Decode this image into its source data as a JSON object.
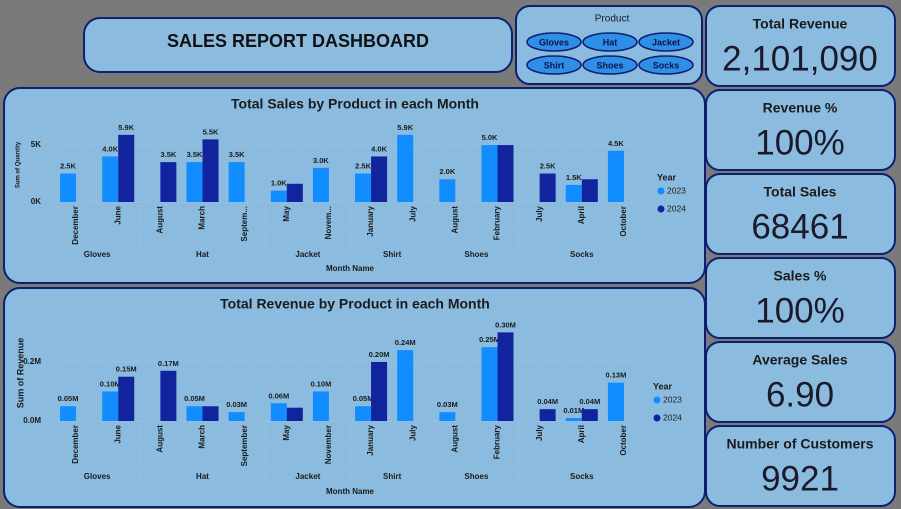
{
  "header": {
    "title": "SALES REPORT DASHBOARD"
  },
  "slicer": {
    "title": "Product",
    "options": [
      "Gloves",
      "Hat",
      "Jacket",
      "Shirt",
      "Shoes",
      "Socks"
    ]
  },
  "kpis": [
    {
      "title": "Total Revenue",
      "value": "2,101,090"
    },
    {
      "title": "Revenue %",
      "value": "100%"
    },
    {
      "title": "Total Sales",
      "value": "68461"
    },
    {
      "title": "Sales %",
      "value": "100%"
    },
    {
      "title": "Average Sales",
      "value": "6.90"
    },
    {
      "title": "Number of Customers",
      "value": "9921"
    }
  ],
  "chart_data": [
    {
      "type": "bar",
      "title": "Total Sales by Product in each Month",
      "x_label": "Month Name",
      "y_label": "Sum of Quantity",
      "legend_title": "Year",
      "categories": [
        "December",
        "June",
        "August",
        "March",
        "Septem...",
        "May",
        "Novem...",
        "January",
        "July",
        "August",
        "February",
        "July",
        "April",
        "October"
      ],
      "category_groups": [
        "Gloves",
        "Gloves",
        "Hat",
        "Hat",
        "Hat",
        "Jacket",
        "Jacket",
        "Shirt",
        "Shirt",
        "Shoes",
        "Shoes",
        "Socks",
        "Socks",
        "Socks"
      ],
      "series": [
        {
          "name": "2023",
          "color": "#118dff",
          "values": [
            2500,
            4000,
            null,
            3500,
            3500,
            1000,
            3000,
            2500,
            5900,
            2000,
            5000,
            null,
            1500,
            4500
          ],
          "value_labels": [
            "2.5K",
            "4.0K",
            null,
            "3.5K",
            "3.5K",
            "1.0K",
            "3.0K",
            "2.5K",
            "5.9K",
            "2.0K",
            "5.0K",
            null,
            "1.5K",
            "4.5K"
          ]
        },
        {
          "name": "2024",
          "color": "#12239e",
          "values": [
            null,
            5900,
            3500,
            5500,
            null,
            1600,
            null,
            4000,
            null,
            null,
            5000,
            2500,
            2000,
            null
          ],
          "value_labels": [
            null,
            "5.9K",
            "3.5K",
            "5.5K",
            null,
            null,
            null,
            "4.0K",
            null,
            null,
            null,
            "2.5K",
            null,
            null
          ]
        }
      ],
      "ylim": [
        0,
        6500
      ],
      "yticks": [
        {
          "value": 0,
          "label": "0K"
        },
        {
          "value": 5000,
          "label": "5K"
        }
      ],
      "grid": true
    },
    {
      "type": "bar",
      "title": "Total Revenue by Product in each Month",
      "x_label": "Month Name",
      "y_label": "Sum of Revenue",
      "legend_title": "Year",
      "categories": [
        "December",
        "June",
        "August",
        "March",
        "September",
        "May",
        "November",
        "January",
        "July",
        "August",
        "February",
        "July",
        "April",
        "October"
      ],
      "category_groups": [
        "Gloves",
        "Gloves",
        "Hat",
        "Hat",
        "Hat",
        "Jacket",
        "Jacket",
        "Shirt",
        "Shirt",
        "Shoes",
        "Shoes",
        "Socks",
        "Socks",
        "Socks"
      ],
      "series": [
        {
          "name": "2023",
          "color": "#118dff",
          "values": [
            50000,
            100000,
            null,
            50000,
            30000,
            60000,
            100000,
            50000,
            240000,
            30000,
            250000,
            null,
            10000,
            130000
          ],
          "value_labels": [
            "0.05M",
            "0.10M",
            null,
            "0.05M",
            "0.03M",
            "0.06M",
            "0.10M",
            "0.05M",
            "0.24M",
            "0.03M",
            "0.25M",
            null,
            "0.01M",
            "0.13M"
          ]
        },
        {
          "name": "2024",
          "color": "#12239e",
          "values": [
            null,
            150000,
            170000,
            50000,
            null,
            45000,
            null,
            200000,
            null,
            null,
            300000,
            40000,
            40000,
            null
          ],
          "value_labels": [
            null,
            "0.15M",
            "0.17M",
            null,
            null,
            null,
            null,
            "0.20M",
            null,
            null,
            "0.30M",
            "0.04M",
            "0.04M",
            null
          ]
        }
      ],
      "ylim": [
        0,
        325000
      ],
      "yticks": [
        {
          "value": 0,
          "label": "0.0M"
        },
        {
          "value": 200000,
          "label": "0.2M"
        }
      ],
      "grid": true
    }
  ]
}
